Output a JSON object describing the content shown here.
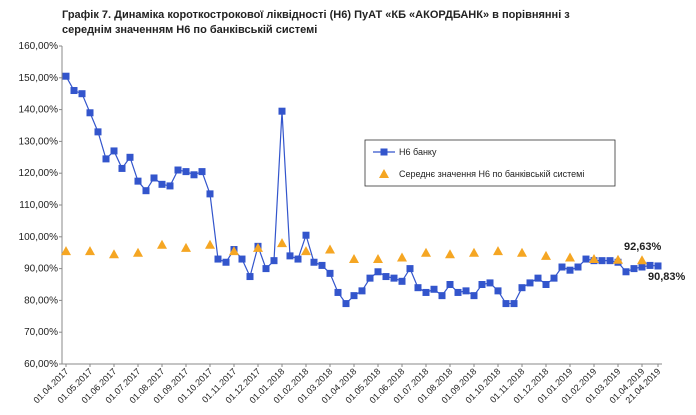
{
  "chart_data": {
    "type": "line",
    "title": "Графік 7. Динаміка короткострокової ліквідності (Н6) ПуАТ «КБ «АКОРДБАНК» в порівнянні з середнім значенням Н6 по банківській системі",
    "categories": [
      "01.04.2017",
      null,
      null,
      "01.05.2017",
      null,
      null,
      "01.06.2017",
      null,
      null,
      "01.07.2017",
      null,
      null,
      "01.08.2017",
      null,
      null,
      "01.09.2017",
      null,
      null,
      "01.10.2017",
      null,
      null,
      "01.11.2017",
      null,
      null,
      "01.12.2017",
      null,
      null,
      "01.01.2018",
      null,
      null,
      "01.02.2018",
      null,
      null,
      "01.03.2018",
      null,
      null,
      "01.04.2018",
      null,
      null,
      "01.05.2018",
      null,
      null,
      "01.06.2018",
      null,
      null,
      "01.07.2018",
      null,
      null,
      "01.08.2018",
      null,
      null,
      "01.09.2018",
      null,
      null,
      "01.10.2018",
      null,
      null,
      "01.11.2018",
      null,
      null,
      "01.12.2018",
      null,
      null,
      "01.01.2019",
      null,
      null,
      "01.02.2019",
      null,
      null,
      "01.03.2019",
      null,
      null,
      "01.04.2019",
      null,
      "21.04.2019"
    ],
    "series": [
      {
        "name": "Н6 банку",
        "color": "#3355cc",
        "marker": "square",
        "line": true,
        "values": [
          150.5,
          146,
          145,
          139,
          133,
          124.5,
          127,
          121.5,
          125,
          117.5,
          114.5,
          118.5,
          116.5,
          116,
          121,
          120.5,
          119.5,
          120.5,
          113.5,
          93,
          92,
          96,
          93,
          87.5,
          97,
          90,
          92.5,
          139.5,
          94,
          93,
          100.5,
          92,
          91,
          88.5,
          82.5,
          79,
          81.5,
          83,
          87,
          89,
          87.5,
          87,
          86,
          90,
          84,
          82.5,
          83.5,
          81.5,
          85,
          82.5,
          83,
          81.5,
          85,
          85.5,
          83,
          79,
          79,
          84,
          85.5,
          87,
          85,
          87,
          90.5,
          89.5,
          90.5,
          93,
          92.5,
          92.5,
          92.5,
          92,
          89,
          90,
          90.5,
          91,
          90.83
        ],
        "value_labels": [
          null,
          null,
          null,
          null,
          null,
          null,
          null,
          null,
          null,
          null,
          null,
          null,
          null,
          null,
          null,
          null,
          null,
          null,
          null,
          null,
          null,
          null,
          null,
          null,
          null,
          null,
          null,
          null,
          null,
          null,
          null,
          null,
          null,
          null,
          null,
          null,
          null,
          null,
          null,
          null,
          null,
          null,
          null,
          null,
          null,
          null,
          null,
          null,
          null,
          null,
          null,
          null,
          null,
          null,
          null,
          null,
          null,
          null,
          null,
          null,
          null,
          null,
          null,
          null,
          null,
          null,
          null,
          null,
          null,
          null,
          null,
          null,
          null,
          null,
          "90,83%"
        ]
      },
      {
        "name": "Середнє значення Н6 по банківській системі",
        "color": "#f5a623",
        "marker": "triangle",
        "line": false,
        "values": [
          95.5,
          null,
          null,
          95.5,
          null,
          null,
          94.5,
          null,
          null,
          95,
          null,
          null,
          97.5,
          null,
          null,
          96.5,
          null,
          null,
          97.5,
          null,
          null,
          95.5,
          null,
          null,
          96.5,
          null,
          null,
          98,
          null,
          null,
          95.5,
          null,
          null,
          96,
          null,
          null,
          93,
          null,
          null,
          93,
          null,
          null,
          93.5,
          null,
          null,
          95,
          null,
          null,
          94.5,
          null,
          null,
          95,
          null,
          null,
          95.5,
          null,
          null,
          95,
          null,
          null,
          94,
          null,
          null,
          93.5,
          null,
          null,
          93,
          null,
          null,
          92.8,
          null,
          null,
          92.63,
          null,
          null
        ],
        "value_labels": [
          null,
          null,
          null,
          null,
          null,
          null,
          null,
          null,
          null,
          null,
          null,
          null,
          null,
          null,
          null,
          null,
          null,
          null,
          null,
          null,
          null,
          null,
          null,
          null,
          null,
          null,
          null,
          null,
          null,
          null,
          null,
          null,
          null,
          null,
          null,
          null,
          null,
          null,
          null,
          null,
          null,
          null,
          null,
          null,
          null,
          null,
          null,
          null,
          null,
          null,
          null,
          null,
          null,
          null,
          null,
          null,
          null,
          null,
          null,
          null,
          null,
          null,
          null,
          null,
          null,
          null,
          null,
          null,
          null,
          null,
          null,
          null,
          "92,63%",
          null,
          null
        ]
      }
    ],
    "ylim": [
      60,
      160
    ],
    "yticks": [
      {
        "value": 60,
        "label": "60,00%"
      },
      {
        "value": 70,
        "label": "70,00%"
      },
      {
        "value": 80,
        "label": "80,00%"
      },
      {
        "value": 90,
        "label": "90,00%"
      },
      {
        "value": 100,
        "label": "100,00%"
      },
      {
        "value": 110,
        "label": "110,00%"
      },
      {
        "value": 120,
        "label": "120,00%"
      },
      {
        "value": 130,
        "label": "130,00%"
      },
      {
        "value": 140,
        "label": "140,00%"
      },
      {
        "value": 150,
        "label": "150,00%"
      },
      {
        "value": 160,
        "label": "160,00%"
      }
    ],
    "grid": false,
    "legend": "upper right"
  }
}
